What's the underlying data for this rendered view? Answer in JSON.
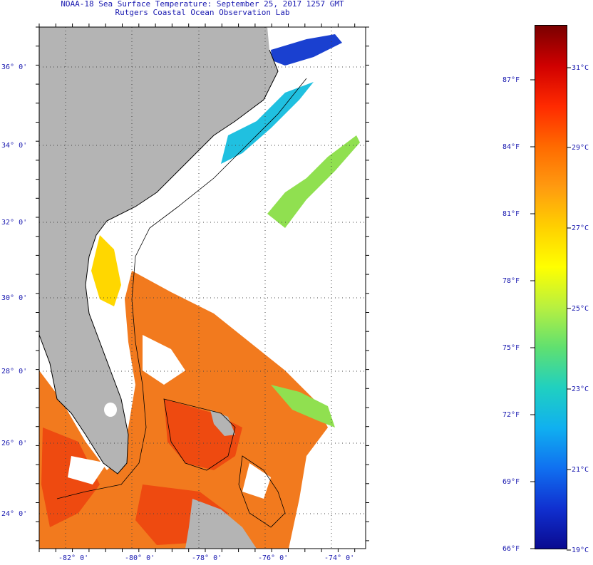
{
  "title_line1": "NOAA-18 Sea Surface Temperature:  September 25, 2017 1257 GMT",
  "title_line2": "Rutgers Coastal Ocean Observation Lab",
  "lat_labels": [
    {
      "value": 36,
      "label": "36° 0'"
    },
    {
      "value": 34,
      "label": "34° 0'"
    },
    {
      "value": 32,
      "label": "32° 0'"
    },
    {
      "value": 30,
      "label": "30° 0'"
    },
    {
      "value": 28,
      "label": "28° 0'"
    },
    {
      "value": 26,
      "label": "26° 0'"
    },
    {
      "value": 24,
      "label": "24° 0'"
    }
  ],
  "lon_labels": [
    {
      "value": -82,
      "label": "-82° 0'"
    },
    {
      "value": -80,
      "label": "-80° 0'"
    },
    {
      "value": -78,
      "label": "-78° 0'"
    },
    {
      "value": -76,
      "label": "-76° 0'"
    },
    {
      "value": -74,
      "label": "-74° 0'"
    }
  ],
  "colorbar": {
    "f_labels": [
      "87°F",
      "84°F",
      "81°F",
      "78°F",
      "75°F",
      "72°F",
      "69°F",
      "66°F"
    ],
    "c_labels": [
      "31°C",
      "29°C",
      "27°C",
      "25°C",
      "23°C",
      "21°C",
      "19°C"
    ],
    "colors": [
      "#7a0000",
      "#d00000",
      "#ff2a00",
      "#ff6a00",
      "#ff9a10",
      "#ffd000",
      "#ffff00",
      "#b8f040",
      "#60e070",
      "#20d0c0",
      "#10b0f0",
      "#1070f0",
      "#1030d0",
      "#0a0a90"
    ]
  }
}
